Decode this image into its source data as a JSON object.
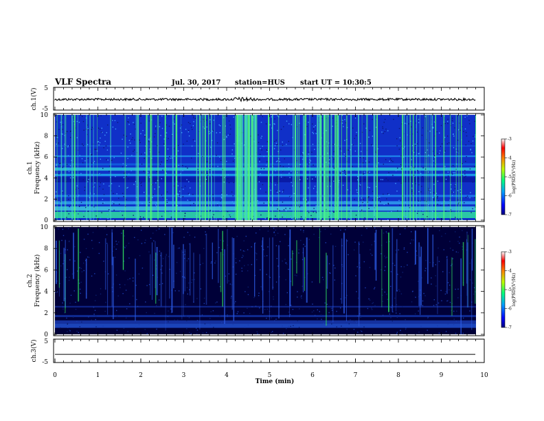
{
  "header": {
    "title": "VLF Spectra",
    "date": "Jul. 30, 2017",
    "station": "station=HUS",
    "start": "start UT = 10:30:5"
  },
  "chart_data": [
    {
      "type": "line",
      "id": "ch1-waveform",
      "ylabel": "ch.1(V)",
      "yticks": [
        "5",
        "-5"
      ],
      "ylim": [
        -5,
        5
      ],
      "xlim": [
        0,
        10
      ],
      "description_level": 0.0
    },
    {
      "type": "heatmap",
      "id": "ch1-spectrogram",
      "ylabel": [
        "ch.1",
        "Frequency (kHz)"
      ],
      "yticks": [
        "0",
        "2",
        "4",
        "6",
        "8",
        "10"
      ],
      "ylim": [
        0,
        10
      ],
      "xlim": [
        0,
        9.85
      ],
      "colorbar": {
        "label": "log(PSD)(V²/Hz)",
        "ticks": [
          "-3",
          "-4",
          "-5",
          "-6",
          "-7"
        ],
        "range": [
          -7,
          -3
        ]
      }
    },
    {
      "type": "heatmap",
      "id": "ch2-spectrogram",
      "ylabel": [
        "ch.2",
        "Frequency (kHz)"
      ],
      "yticks": [
        "0",
        "2",
        "4",
        "6",
        "8",
        "10"
      ],
      "ylim": [
        0,
        10
      ],
      "xlim": [
        0,
        9.85
      ],
      "colorbar": {
        "label": "log(PSD)(V²/Hz)",
        "ticks": [
          "-3",
          "-4",
          "-5",
          "-6",
          "-7"
        ],
        "range": [
          -7,
          -3
        ]
      }
    },
    {
      "type": "line",
      "id": "ch3-waveform",
      "ylabel": "ch.3(V)",
      "yticks": [
        "5",
        "-5"
      ],
      "ylim": [
        -5,
        5
      ],
      "xlim": [
        0,
        10
      ],
      "level": -1.5
    }
  ],
  "xaxis": {
    "label": "Time (min)",
    "ticks": [
      "0",
      "1",
      "2",
      "3",
      "4",
      "5",
      "6",
      "7",
      "8",
      "9",
      "10"
    ]
  },
  "colors": {
    "spec_bg_ch1": "#1030c8",
    "spec_bg_ch2": "#000038",
    "spec_line": "#30e8a0",
    "spec_green": "#40ff40"
  }
}
